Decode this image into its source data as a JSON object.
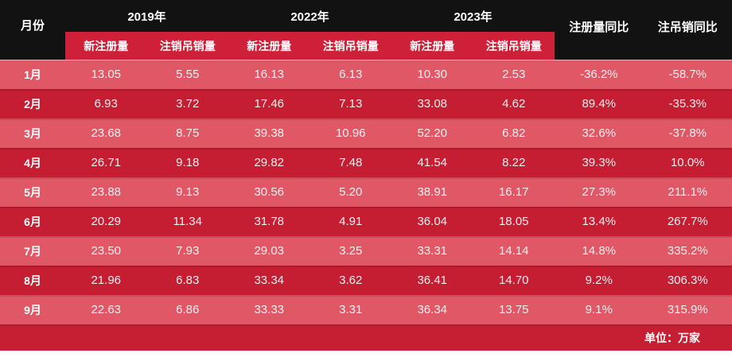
{
  "chart_data": {
    "type": "table",
    "month_header": "月份",
    "year_groups": [
      "2019年",
      "2022年",
      "2023年"
    ],
    "sub_headers": [
      "新注册量",
      "注销吊销量",
      "新注册量",
      "注销吊销量",
      "新注册量",
      "注销吊销量"
    ],
    "yoy_headers": [
      "注册量同比",
      "注吊销同比"
    ],
    "unit_note": "单位：万家",
    "rows": [
      {
        "month": "1月",
        "values": [
          "13.05",
          "5.55",
          "16.13",
          "6.13",
          "10.30",
          "2.53"
        ],
        "yoy": [
          "-36.2%",
          "-58.7%"
        ]
      },
      {
        "month": "2月",
        "values": [
          "6.93",
          "3.72",
          "17.46",
          "7.13",
          "33.08",
          "4.62"
        ],
        "yoy": [
          "89.4%",
          "-35.3%"
        ]
      },
      {
        "month": "3月",
        "values": [
          "23.68",
          "8.75",
          "39.38",
          "10.96",
          "52.20",
          "6.82"
        ],
        "yoy": [
          "32.6%",
          "-37.8%"
        ]
      },
      {
        "month": "4月",
        "values": [
          "26.71",
          "9.18",
          "29.82",
          "7.48",
          "41.54",
          "8.22"
        ],
        "yoy": [
          "39.3%",
          "10.0%"
        ]
      },
      {
        "month": "5月",
        "values": [
          "23.88",
          "9.13",
          "30.56",
          "5.20",
          "38.91",
          "16.17"
        ],
        "yoy": [
          "27.3%",
          "211.1%"
        ]
      },
      {
        "month": "6月",
        "values": [
          "20.29",
          "11.34",
          "31.78",
          "4.91",
          "36.04",
          "18.05"
        ],
        "yoy": [
          "13.4%",
          "267.7%"
        ]
      },
      {
        "month": "7月",
        "values": [
          "23.50",
          "7.93",
          "29.03",
          "3.25",
          "33.31",
          "14.14"
        ],
        "yoy": [
          "14.8%",
          "335.2%"
        ]
      },
      {
        "month": "8月",
        "values": [
          "21.96",
          "6.83",
          "33.34",
          "3.62",
          "36.41",
          "14.70"
        ],
        "yoy": [
          "9.2%",
          "306.3%"
        ]
      },
      {
        "month": "9月",
        "values": [
          "22.63",
          "6.86",
          "33.33",
          "3.31",
          "36.34",
          "13.75"
        ],
        "yoy": [
          "9.1%",
          "315.9%"
        ]
      }
    ]
  },
  "theme": {
    "header_bg": "#121212",
    "subheader_bg": "#CE2139",
    "row_light": "#E05866",
    "row_dark": "#C51D32",
    "footer_bg": "#C61F33",
    "text_color": "#FFFFFF",
    "value_color": "#FBEFF0"
  }
}
